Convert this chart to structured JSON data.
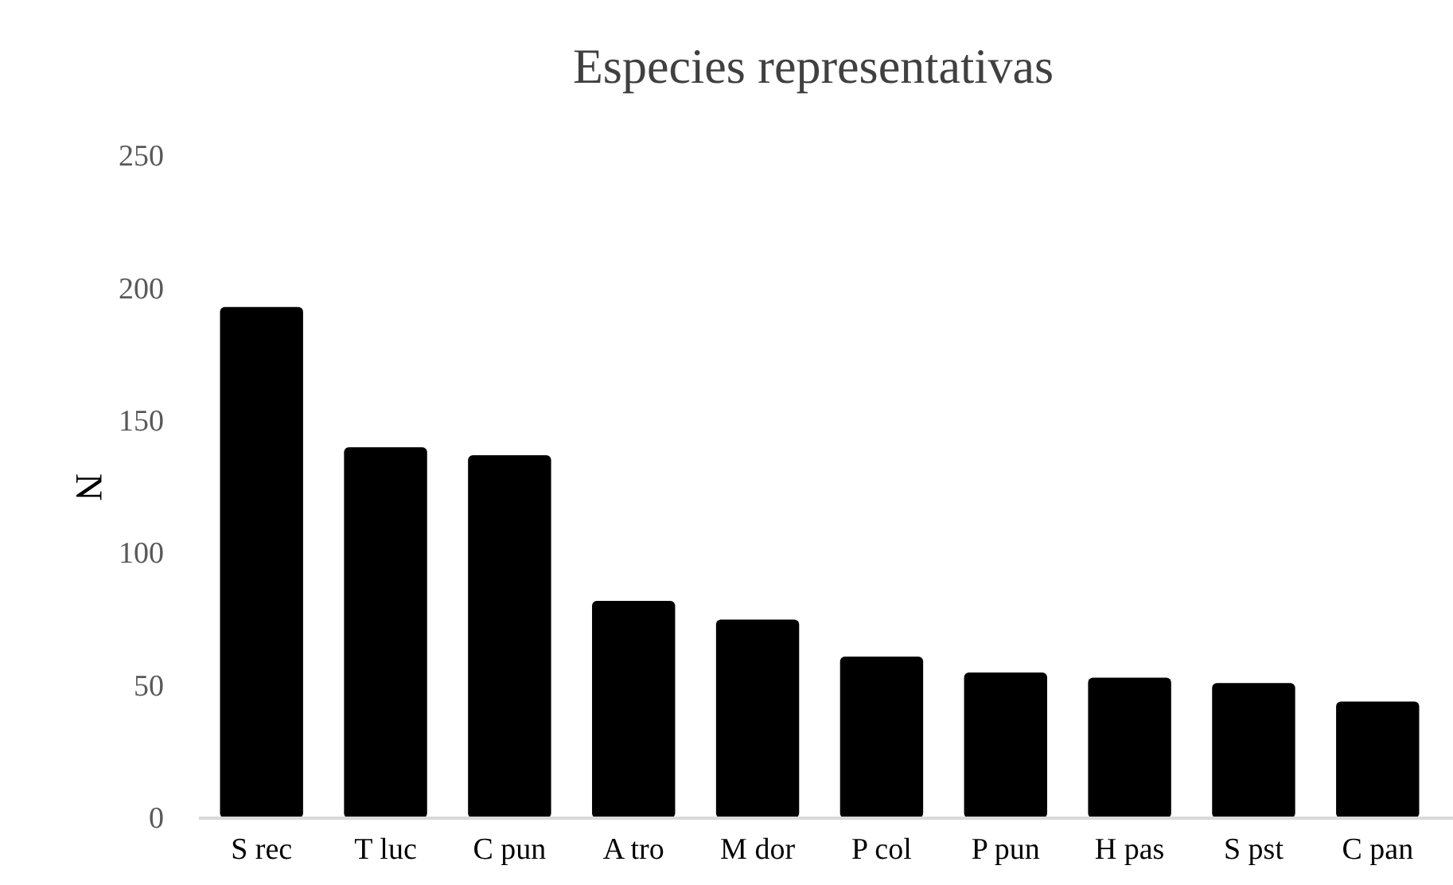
{
  "chart_data": {
    "type": "bar",
    "title": "Especies representativas",
    "ylabel": "N",
    "categories": [
      "S rec",
      "T luc",
      "C pun",
      "A tro",
      "M dor",
      "P col",
      "P pun",
      "H pas",
      "S pst",
      "C pan"
    ],
    "values": [
      193,
      140,
      137,
      82,
      75,
      61,
      55,
      53,
      51,
      44
    ],
    "color": "#000000",
    "ylim": [
      0,
      250
    ],
    "yticks": [
      0,
      50,
      100,
      150,
      200,
      250
    ],
    "grid": false
  }
}
